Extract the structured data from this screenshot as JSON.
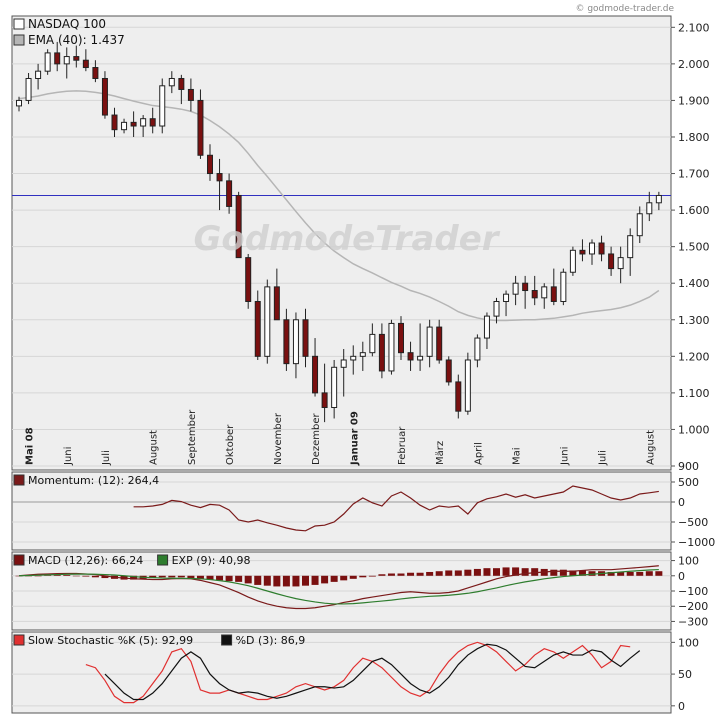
{
  "watermark": "© godmode-trader.de",
  "logo_text": "GodmodeTrader",
  "colors": {
    "up": "#ffffff",
    "down": "#7a1010",
    "ema": "#b5b5b5",
    "momentum": "#7a1a1a",
    "macd": "#7a1a1a",
    "signal": "#2e7d2e",
    "stoch_k": "#e03030",
    "stoch_d": "#111111",
    "resistance": "#3030c0",
    "grid": "#d6d6d6",
    "panel_bg": "#eeeeee"
  },
  "chart_data": [
    {
      "type": "candlestick",
      "title": "",
      "legend": [
        {
          "label": "NASDAQ 100",
          "color": "#ffffff"
        },
        {
          "label": "EMA (40): 1.437",
          "color": "#b5b5b5"
        }
      ],
      "y_ticks": [
        "2.100",
        "2.000",
        "1.900",
        "1.800",
        "1.700",
        "1.600",
        "1.500",
        "1.400",
        "1.300",
        "1.200",
        "1.100",
        "1.000",
        "900"
      ],
      "y_tick_values": [
        2100,
        2000,
        1900,
        1800,
        1700,
        1600,
        1500,
        1400,
        1300,
        1200,
        1100,
        1000,
        900
      ],
      "ylim": [
        900,
        2120
      ],
      "x_labels": [
        {
          "label": "Mai 08",
          "week": 1,
          "bold": true
        },
        {
          "label": "Juni",
          "week": 5
        },
        {
          "label": "Juli",
          "week": 9
        },
        {
          "label": "August",
          "week": 14
        },
        {
          "label": "September",
          "week": 18
        },
        {
          "label": "Oktober",
          "week": 22
        },
        {
          "label": "November",
          "week": 27
        },
        {
          "label": "Dezember",
          "week": 31
        },
        {
          "label": "Januar 09",
          "week": 35,
          "bold": true
        },
        {
          "label": "Februar",
          "week": 40
        },
        {
          "label": "März",
          "week": 44
        },
        {
          "label": "April",
          "week": 48
        },
        {
          "label": "Mai",
          "week": 52
        },
        {
          "label": "Juni",
          "week": 57
        },
        {
          "label": "Juli",
          "week": 61
        },
        {
          "label": "August",
          "week": 66
        }
      ],
      "resistance_line": 1640,
      "candles": [
        [
          1885,
          1910,
          1870,
          1900
        ],
        [
          1900,
          1975,
          1890,
          1960
        ],
        [
          1960,
          2000,
          1930,
          1980
        ],
        [
          1980,
          2040,
          1970,
          2030
        ],
        [
          2030,
          2060,
          1980,
          2000
        ],
        [
          2000,
          2045,
          1960,
          2020
        ],
        [
          2020,
          2050,
          1990,
          2010
        ],
        [
          2010,
          2040,
          1980,
          1990
        ],
        [
          1990,
          2010,
          1950,
          1960
        ],
        [
          1960,
          1980,
          1850,
          1860
        ],
        [
          1860,
          1880,
          1800,
          1820
        ],
        [
          1820,
          1850,
          1810,
          1840
        ],
        [
          1840,
          1870,
          1800,
          1830
        ],
        [
          1830,
          1860,
          1800,
          1850
        ],
        [
          1850,
          1880,
          1810,
          1830
        ],
        [
          1830,
          1960,
          1810,
          1940
        ],
        [
          1940,
          1980,
          1920,
          1960
        ],
        [
          1960,
          1970,
          1890,
          1930
        ],
        [
          1930,
          1960,
          1870,
          1900
        ],
        [
          1900,
          1930,
          1740,
          1750
        ],
        [
          1750,
          1780,
          1680,
          1700
        ],
        [
          1700,
          1740,
          1600,
          1680
        ],
        [
          1680,
          1700,
          1590,
          1610
        ],
        [
          1640,
          1650,
          1470,
          1470
        ],
        [
          1470,
          1480,
          1330,
          1350
        ],
        [
          1350,
          1380,
          1190,
          1200
        ],
        [
          1200,
          1410,
          1180,
          1390
        ],
        [
          1390,
          1440,
          1300,
          1300
        ],
        [
          1300,
          1330,
          1160,
          1180
        ],
        [
          1180,
          1320,
          1140,
          1300
        ],
        [
          1300,
          1330,
          1170,
          1200
        ],
        [
          1200,
          1250,
          1090,
          1100
        ],
        [
          1100,
          1180,
          1020,
          1060
        ],
        [
          1060,
          1190,
          1030,
          1170
        ],
        [
          1170,
          1220,
          1090,
          1190
        ],
        [
          1190,
          1230,
          1150,
          1200
        ],
        [
          1200,
          1240,
          1160,
          1210
        ],
        [
          1210,
          1290,
          1200,
          1260
        ],
        [
          1260,
          1290,
          1140,
          1160
        ],
        [
          1160,
          1300,
          1150,
          1290
        ],
        [
          1290,
          1310,
          1190,
          1210
        ],
        [
          1210,
          1240,
          1160,
          1190
        ],
        [
          1190,
          1290,
          1160,
          1200
        ],
        [
          1200,
          1300,
          1170,
          1280
        ],
        [
          1280,
          1300,
          1180,
          1190
        ],
        [
          1190,
          1200,
          1120,
          1130
        ],
        [
          1130,
          1150,
          1030,
          1050
        ],
        [
          1050,
          1210,
          1040,
          1190
        ],
        [
          1190,
          1260,
          1170,
          1250
        ],
        [
          1250,
          1320,
          1220,
          1310
        ],
        [
          1310,
          1360,
          1290,
          1350
        ],
        [
          1350,
          1380,
          1310,
          1370
        ],
        [
          1370,
          1420,
          1340,
          1400
        ],
        [
          1400,
          1420,
          1330,
          1380
        ],
        [
          1380,
          1420,
          1340,
          1360
        ],
        [
          1360,
          1400,
          1330,
          1390
        ],
        [
          1390,
          1440,
          1340,
          1350
        ],
        [
          1350,
          1440,
          1340,
          1430
        ],
        [
          1430,
          1500,
          1420,
          1490
        ],
        [
          1490,
          1520,
          1460,
          1480
        ],
        [
          1480,
          1520,
          1450,
          1510
        ],
        [
          1510,
          1530,
          1460,
          1480
        ],
        [
          1480,
          1500,
          1420,
          1440
        ],
        [
          1440,
          1500,
          1400,
          1470
        ],
        [
          1470,
          1550,
          1420,
          1530
        ],
        [
          1530,
          1610,
          1510,
          1590
        ],
        [
          1590,
          1650,
          1570,
          1620
        ],
        [
          1620,
          1650,
          1600,
          1640
        ]
      ],
      "ema": [
        1905,
        1908,
        1912,
        1918,
        1922,
        1925,
        1926,
        1925,
        1922,
        1918,
        1912,
        1905,
        1898,
        1892,
        1886,
        1883,
        1880,
        1876,
        1870,
        1860,
        1845,
        1828,
        1808,
        1785,
        1755,
        1722,
        1692,
        1660,
        1628,
        1596,
        1565,
        1536,
        1510,
        1488,
        1470,
        1453,
        1440,
        1428,
        1415,
        1402,
        1392,
        1380,
        1372,
        1362,
        1350,
        1337,
        1322,
        1312,
        1305,
        1300,
        1298,
        1298,
        1299,
        1300,
        1300,
        1302,
        1304,
        1308,
        1312,
        1318,
        1322,
        1325,
        1328,
        1333,
        1340,
        1350,
        1362,
        1380
      ]
    },
    {
      "type": "line",
      "legend": [
        {
          "label": "Momentum: (12): 264,4",
          "color": "#7a1a1a"
        }
      ],
      "y_ticks": [
        "500",
        "0",
        "−500",
        "−1000"
      ],
      "y_tick_values": [
        500,
        0,
        -500,
        -1000
      ],
      "ylim": [
        -1100,
        650
      ],
      "series": [
        {
          "name": "Momentum",
          "start_week": 12,
          "values": [
            -120,
            -120,
            -100,
            -60,
            40,
            10,
            -80,
            -140,
            -60,
            -80,
            -200,
            -450,
            -500,
            -450,
            -520,
            -580,
            -650,
            -700,
            -720,
            -600,
            -580,
            -500,
            -300,
            -50,
            100,
            -20,
            -100,
            150,
            250,
            100,
            -80,
            -200,
            -100,
            -130,
            -100,
            -300,
            -20,
            80,
            130,
            200,
            120,
            180,
            100,
            150,
            200,
            250,
            400,
            350,
            300,
            200,
            100,
            50,
            100,
            200,
            230,
            264
          ]
        }
      ]
    },
    {
      "type": "bar+line",
      "legend": [
        {
          "label": "MACD (12,26): 66,24",
          "color": "#7a1010"
        },
        {
          "label": "EXP (9): 40,98",
          "color": "#2e7d2e"
        }
      ],
      "y_ticks": [
        "100",
        "0",
        "−100",
        "−200",
        "−300"
      ],
      "y_tick_values": [
        100,
        0,
        -100,
        -200,
        -300
      ],
      "ylim": [
        -330,
        130
      ],
      "histogram": [
        0,
        0,
        0,
        5,
        5,
        5,
        0,
        -5,
        -10,
        -15,
        -20,
        -25,
        -25,
        -20,
        -15,
        -10,
        -10,
        -10,
        -15,
        -20,
        -25,
        -30,
        -35,
        -40,
        -50,
        -60,
        -65,
        -70,
        -70,
        -70,
        -65,
        -60,
        -50,
        -40,
        -30,
        -20,
        -10,
        -5,
        10,
        15,
        15,
        20,
        20,
        25,
        30,
        35,
        35,
        40,
        45,
        50,
        50,
        55,
        55,
        50,
        50,
        45,
        40,
        40,
        35,
        35,
        30,
        30,
        25,
        25,
        25,
        25,
        30,
        30
      ],
      "series": [
        {
          "name": "MACD",
          "values": [
            0,
            5,
            10,
            12,
            14,
            15,
            15,
            12,
            8,
            0,
            -10,
            -15,
            -20,
            -22,
            -25,
            -25,
            -20,
            -18,
            -20,
            -30,
            -45,
            -60,
            -85,
            -110,
            -140,
            -165,
            -185,
            -200,
            -210,
            -215,
            -215,
            -210,
            -200,
            -190,
            -175,
            -165,
            -150,
            -140,
            -130,
            -120,
            -110,
            -105,
            -110,
            -115,
            -115,
            -110,
            -100,
            -80,
            -60,
            -40,
            -20,
            -5,
            5,
            15,
            20,
            25,
            30,
            30,
            30,
            35,
            40,
            40,
            40,
            45,
            50,
            55,
            60,
            66
          ]
        },
        {
          "name": "EXP",
          "values": [
            0,
            2,
            4,
            6,
            8,
            10,
            11,
            11,
            10,
            8,
            5,
            0,
            -5,
            -10,
            -12,
            -15,
            -16,
            -17,
            -18,
            -20,
            -25,
            -32,
            -40,
            -52,
            -65,
            -82,
            -100,
            -118,
            -135,
            -150,
            -162,
            -172,
            -180,
            -185,
            -185,
            -183,
            -178,
            -172,
            -166,
            -160,
            -152,
            -145,
            -140,
            -135,
            -132,
            -128,
            -122,
            -115,
            -105,
            -92,
            -80,
            -65,
            -52,
            -40,
            -30,
            -20,
            -12,
            -5,
            0,
            5,
            10,
            15,
            20,
            25,
            30,
            34,
            38,
            41
          ]
        }
      ]
    },
    {
      "type": "line",
      "legend": [
        {
          "label": "Slow Stochastic %K (5): 92,99",
          "color": "#e03030"
        },
        {
          "label": "%D (3): 86,9",
          "color": "#111111"
        }
      ],
      "y_ticks": [
        "100",
        "50",
        "0"
      ],
      "y_tick_values": [
        100,
        50,
        0
      ],
      "ylim": [
        -5,
        110
      ],
      "series": [
        {
          "name": "%K",
          "start_week": 7,
          "values": [
            65,
            60,
            40,
            15,
            5,
            5,
            15,
            35,
            55,
            85,
            90,
            70,
            25,
            20,
            20,
            25,
            20,
            15,
            10,
            10,
            15,
            20,
            30,
            35,
            30,
            25,
            30,
            40,
            60,
            75,
            70,
            60,
            45,
            30,
            20,
            15,
            25,
            50,
            70,
            85,
            95,
            100,
            95,
            85,
            70,
            55,
            65,
            80,
            90,
            85,
            75,
            85,
            95,
            80,
            60,
            70,
            95,
            93
          ]
        },
        {
          "name": "%D",
          "start_week": 9,
          "values": [
            50,
            35,
            20,
            10,
            10,
            20,
            35,
            55,
            75,
            85,
            75,
            50,
            35,
            25,
            20,
            22,
            20,
            15,
            12,
            15,
            20,
            25,
            30,
            30,
            28,
            30,
            40,
            55,
            70,
            75,
            65,
            50,
            35,
            25,
            20,
            30,
            45,
            65,
            80,
            90,
            97,
            95,
            88,
            75,
            62,
            60,
            70,
            80,
            85,
            80,
            80,
            88,
            85,
            72,
            62,
            75,
            87
          ]
        }
      ]
    }
  ]
}
